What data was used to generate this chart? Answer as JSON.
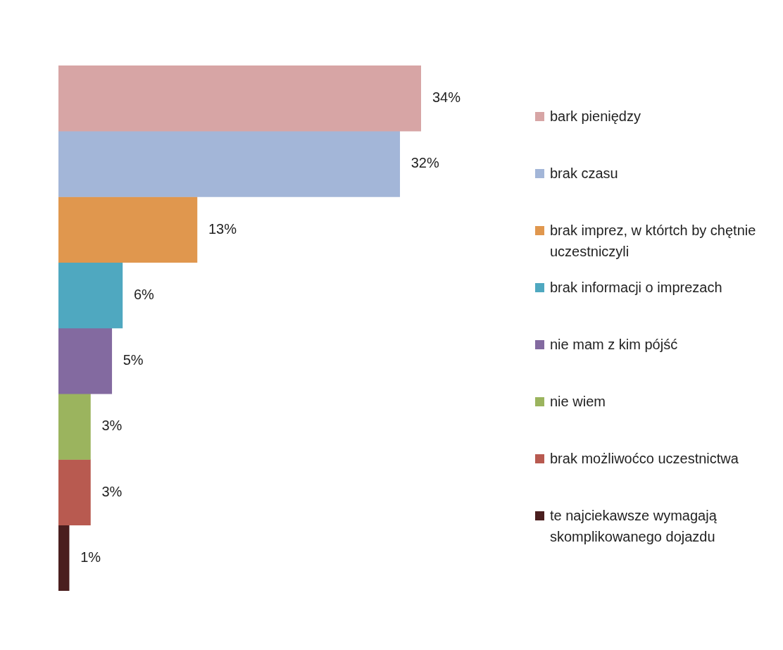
{
  "chart_data": {
    "type": "bar",
    "orientation": "horizontal",
    "categories": [
      null
    ],
    "series": [
      {
        "name": "bark pieniędzy",
        "color": "#d7a5a5",
        "values": [
          34
        ],
        "value_labels": [
          "34%"
        ]
      },
      {
        "name": "brak czasu",
        "color": "#a3b6d8",
        "values": [
          32
        ],
        "value_labels": [
          "32%"
        ]
      },
      {
        "name": "brak imprez, w którtch by chętnie uczestniczyli",
        "color": "#e0974e",
        "values": [
          13
        ],
        "value_labels": [
          "13%"
        ]
      },
      {
        "name": "brak informacji o imprezach",
        "color": "#4fa8c0",
        "values": [
          6
        ],
        "value_labels": [
          "6%"
        ]
      },
      {
        "name": "nie mam z kim pójść",
        "color": "#836aa0",
        "values": [
          5
        ],
        "value_labels": [
          "5%"
        ]
      },
      {
        "name": "nie wiem",
        "color": "#9bb45e",
        "values": [
          3
        ],
        "value_labels": [
          "3%"
        ]
      },
      {
        "name": "brak możliwoćco uczestnictwa",
        "color": "#b85a50",
        "values": [
          3
        ],
        "value_labels": [
          "3%"
        ]
      },
      {
        "name": "te najciekawsze wymagają skomplikowanego dojazdu",
        "color": "#4a1e1e",
        "values": [
          1
        ],
        "value_labels": [
          "1%"
        ]
      }
    ],
    "xlim": [
      0,
      34
    ],
    "tick_labels": false,
    "legend": "right"
  }
}
